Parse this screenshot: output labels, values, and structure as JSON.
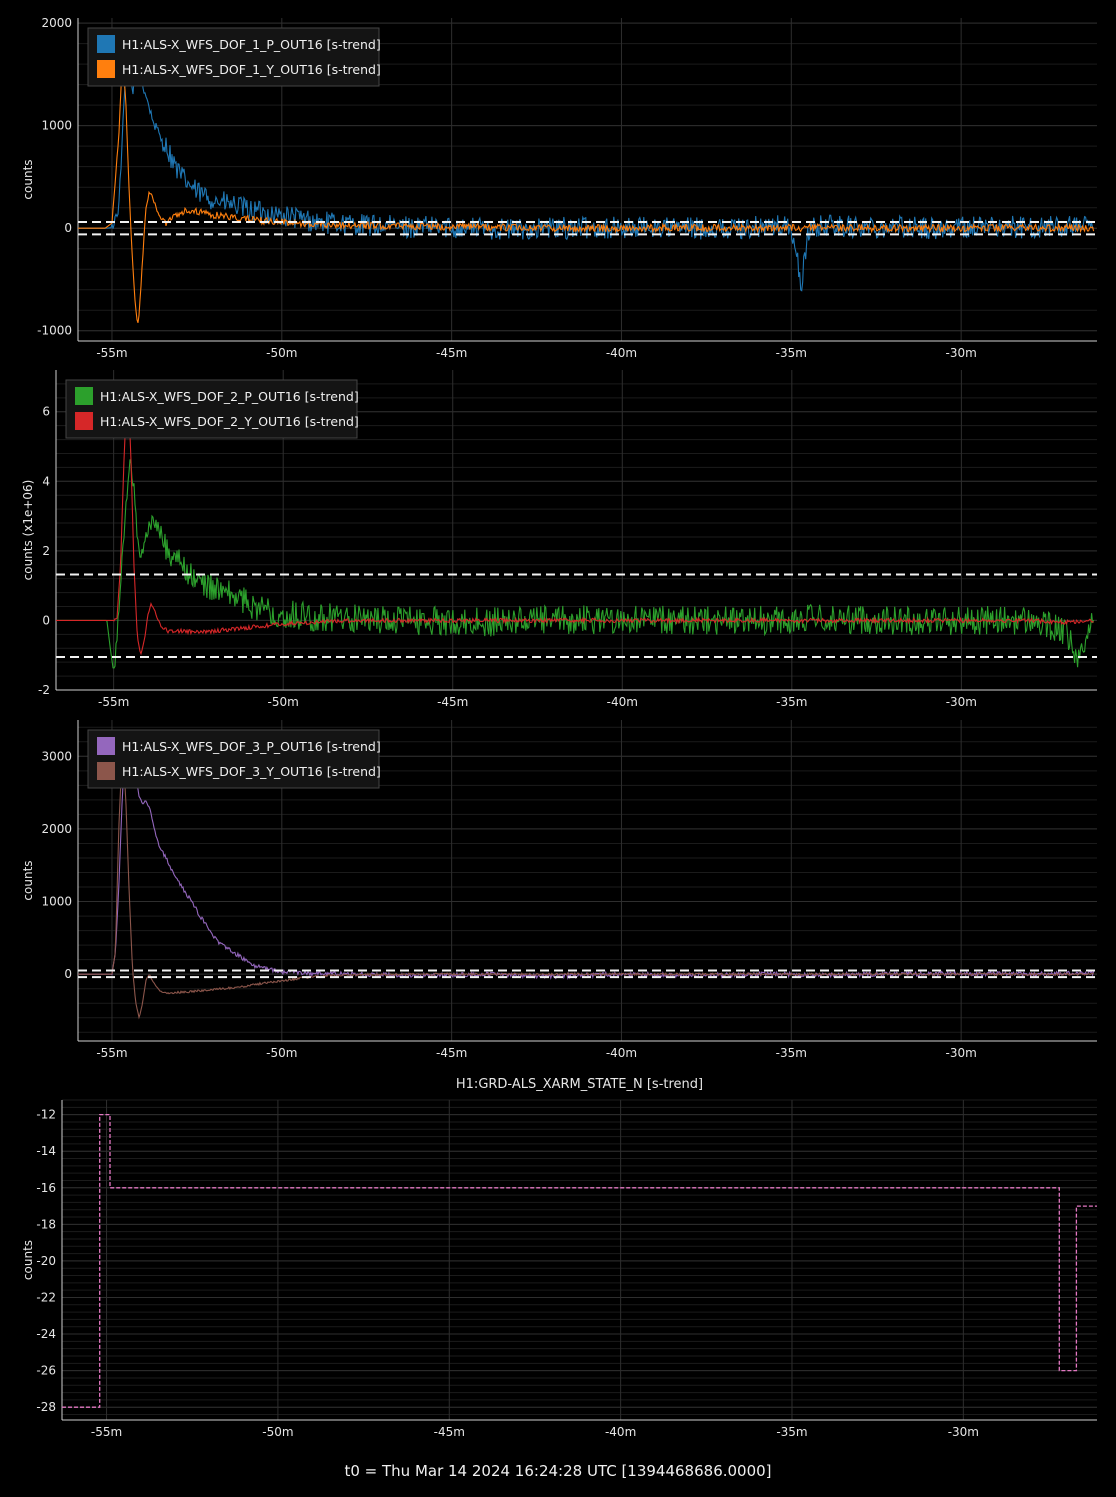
{
  "footer_text": "t0 = Thu Mar 14 2024 16:24:28 UTC [1394468686.0000]",
  "chart_data": [
    {
      "type": "line",
      "ylabel": "counts",
      "x_unit": "minutes relative to t0",
      "xlim": [
        -56,
        -26
      ],
      "ylim": [
        -1100,
        2050
      ],
      "x_ticks": [
        -55,
        -50,
        -45,
        -40,
        -35,
        -30
      ],
      "x_tick_labels": [
        "-55m",
        "-50m",
        "-45m",
        "-40m",
        "-35m",
        "-30m"
      ],
      "y_ticks": [
        -1000,
        0,
        1000,
        2000
      ],
      "y_tick_labels": [
        "-1000",
        "0",
        "1000",
        "2000"
      ],
      "thresholds": [
        60,
        -60
      ],
      "legend_position": "top-left",
      "series": [
        {
          "name": "H1:ALS-X_WFS_DOF_1_P_OUT16 [s-trend]",
          "color": "#1f77b4",
          "x": [
            -56,
            -55.2,
            -55.0,
            -54.8,
            -54.6,
            -54.5,
            -54.4,
            -54.3,
            -54.2,
            -54.1,
            -54.0,
            -53.8,
            -53.6,
            -53.4,
            -53.2,
            -53.0,
            -52.5,
            -52.0,
            -51.5,
            -51.0,
            -50.5,
            -50.0,
            -49.5,
            -49.0,
            -48.0,
            -47.0,
            -46.0,
            -45.0,
            -44.0,
            -43.0,
            -42.0,
            -41.0,
            -40.0,
            -39.0,
            -38.0,
            -37.0,
            -36.0,
            -35.5,
            -35.0,
            -34.7,
            -34.5,
            -34.0,
            -33.0,
            -32.0,
            -31.0,
            -30.0,
            -29.0,
            -28.0,
            -27.0,
            -26.1
          ],
          "y": [
            0,
            0,
            5,
            200,
            1500,
            1850,
            1300,
            1550,
            1750,
            1400,
            1300,
            1050,
            900,
            800,
            650,
            520,
            350,
            280,
            230,
            180,
            150,
            120,
            100,
            60,
            40,
            20,
            10,
            10,
            0,
            -10,
            0,
            5,
            0,
            10,
            0,
            -5,
            10,
            20,
            10,
            -560,
            -20,
            30,
            10,
            20,
            0,
            10,
            20,
            0,
            15,
            0
          ]
        },
        {
          "name": "H1:ALS-X_WFS_DOF_1_Y_OUT16 [s-trend]",
          "color": "#ff7f0e",
          "x": [
            -56,
            -55.2,
            -55.0,
            -54.8,
            -54.7,
            -54.6,
            -54.5,
            -54.4,
            -54.3,
            -54.25,
            -54.2,
            -54.1,
            -54.0,
            -53.9,
            -53.8,
            -53.6,
            -53.4,
            -53.2,
            -53.0,
            -52.8,
            -52.5,
            -52.0,
            -51.5,
            -51.0,
            -50.5,
            -50.0,
            -49.0,
            -48.0,
            -46.0,
            -44.0,
            -42.0,
            -40.0,
            -38.0,
            -36.0,
            -34.0,
            -32.0,
            -30.0,
            -28.0,
            -26.1
          ],
          "y": [
            0,
            0,
            50,
            900,
            1600,
            1300,
            400,
            -300,
            -800,
            -940,
            -850,
            -300,
            200,
            350,
            300,
            100,
            50,
            120,
            150,
            180,
            170,
            130,
            110,
            90,
            70,
            60,
            40,
            30,
            20,
            10,
            0,
            0,
            5,
            0,
            5,
            0,
            0,
            5,
            0
          ]
        }
      ]
    },
    {
      "type": "line",
      "ylabel": "counts (x1e+06)",
      "x_unit": "minutes relative to t0",
      "xlim": [
        -56.7,
        -26
      ],
      "ylim": [
        -2,
        7.2
      ],
      "x_ticks": [
        -55,
        -50,
        -45,
        -40,
        -35,
        -30
      ],
      "x_tick_labels": [
        "-55m",
        "-50m",
        "-45m",
        "-40m",
        "-35m",
        "-30m"
      ],
      "y_ticks": [
        -2,
        0,
        2,
        4,
        6
      ],
      "y_tick_labels": [
        "-2",
        "0",
        "2",
        "4",
        "6"
      ],
      "thresholds": [
        1.32,
        -1.05
      ],
      "legend_position": "top-left",
      "series": [
        {
          "name": "H1:ALS-X_WFS_DOF_2_P_OUT16 [s-trend]",
          "color": "#2ca02c",
          "x": [
            -56.7,
            -55.2,
            -55.1,
            -55.0,
            -54.9,
            -54.8,
            -54.7,
            -54.6,
            -54.5,
            -54.4,
            -54.3,
            -54.2,
            -54.1,
            -54.0,
            -53.8,
            -53.6,
            -53.4,
            -53.2,
            -53.0,
            -52.8,
            -52.5,
            -52.0,
            -51.5,
            -51.0,
            -50.5,
            -50.0,
            -49.0,
            -48.0,
            -46.0,
            -44.0,
            -42.0,
            -40.0,
            -38.0,
            -36.0,
            -34.0,
            -32.0,
            -30.0,
            -28.0,
            -27.0,
            -26.5,
            -26.1
          ],
          "y": [
            0,
            0,
            -0.8,
            -1.5,
            -0.5,
            1.0,
            2.5,
            3.8,
            4.6,
            3.8,
            2.3,
            1.8,
            2.2,
            2.6,
            2.9,
            2.5,
            2.0,
            1.8,
            1.6,
            1.4,
            1.1,
            0.9,
            0.7,
            0.5,
            0.3,
            0.2,
            0.1,
            0.05,
            0,
            -0.05,
            0,
            0.05,
            0,
            0,
            0.05,
            0,
            0,
            0,
            -0.3,
            -1.2,
            0.3
          ]
        },
        {
          "name": "H1:ALS-X_WFS_DOF_2_Y_OUT16 [s-trend]",
          "color": "#d62728",
          "x": [
            -56.7,
            -55.0,
            -54.9,
            -54.8,
            -54.7,
            -54.6,
            -54.5,
            -54.4,
            -54.3,
            -54.2,
            -54.1,
            -54.0,
            -53.9,
            -53.8,
            -53.6,
            -53.4,
            -53.0,
            -52.5,
            -52.0,
            -51.5,
            -51.0,
            -50.5,
            -50.0,
            -49.0,
            -48.0,
            -46.0,
            -44.0,
            -42.0,
            -40.0,
            -38.0,
            -36.0,
            -34.0,
            -32.0,
            -30.0,
            -28.0,
            -27.0,
            -26.1
          ],
          "y": [
            0,
            0,
            0.1,
            1.5,
            4.5,
            6.8,
            5.0,
            1.5,
            -0.5,
            -1.0,
            -0.6,
            0.1,
            0.5,
            0.3,
            -0.2,
            -0.3,
            -0.3,
            -0.35,
            -0.3,
            -0.25,
            -0.2,
            -0.15,
            -0.1,
            -0.05,
            0,
            0,
            0,
            0,
            0,
            0,
            0,
            0,
            0,
            0,
            0,
            -0.05,
            0
          ]
        }
      ]
    },
    {
      "type": "line",
      "ylabel": "counts",
      "x_unit": "minutes relative to t0",
      "xlim": [
        -56,
        -26
      ],
      "ylim": [
        -920,
        3500
      ],
      "x_ticks": [
        -55,
        -50,
        -45,
        -40,
        -35,
        -30
      ],
      "x_tick_labels": [
        "-55m",
        "-50m",
        "-45m",
        "-40m",
        "-35m",
        "-30m"
      ],
      "y_ticks": [
        0,
        1000,
        2000,
        3000
      ],
      "y_tick_labels": [
        "0",
        "1000",
        "2000",
        "3000"
      ],
      "thresholds": [
        50,
        -40
      ],
      "legend_position": "top-left",
      "series": [
        {
          "name": "H1:ALS-X_WFS_DOF_3_P_OUT16 [s-trend]",
          "color": "#9467bd",
          "x": [
            -56,
            -55.0,
            -54.9,
            -54.8,
            -54.7,
            -54.6,
            -54.5,
            -54.4,
            -54.3,
            -54.2,
            -54.1,
            -54.0,
            -53.9,
            -53.8,
            -53.7,
            -53.6,
            -53.4,
            -53.2,
            -53.0,
            -52.8,
            -52.6,
            -52.4,
            -52.2,
            -52.0,
            -51.8,
            -51.5,
            -51.2,
            -51.0,
            -50.8,
            -50.5,
            -50.2,
            -50.0,
            -49.0,
            -48.0,
            -46.0,
            -44.0,
            -42.0,
            -40.0,
            -38.0,
            -36.0,
            -34.0,
            -32.0,
            -30.0,
            -28.0,
            -26.1
          ],
          "y": [
            0,
            0,
            300,
            1200,
            2400,
            3200,
            3350,
            3100,
            2700,
            2450,
            2350,
            2380,
            2300,
            2100,
            1900,
            1750,
            1600,
            1400,
            1250,
            1100,
            950,
            800,
            650,
            520,
            420,
            320,
            230,
            170,
            120,
            80,
            50,
            30,
            10,
            0,
            -20,
            0,
            -30,
            0,
            -20,
            0,
            -10,
            0,
            10,
            0,
            20
          ]
        },
        {
          "name": "H1:ALS-X_WFS_DOF_3_Y_OUT16 [s-trend]",
          "color": "#8c564b",
          "x": [
            -56,
            -55.0,
            -54.9,
            -54.8,
            -54.7,
            -54.6,
            -54.5,
            -54.4,
            -54.3,
            -54.2,
            -54.1,
            -54.0,
            -53.9,
            -53.8,
            -53.6,
            -53.4,
            -53.0,
            -52.5,
            -52.0,
            -51.5,
            -51.0,
            -50.5,
            -50.0,
            -49.5,
            -49.0,
            -48.0,
            -46.0,
            -44.0,
            -42.0,
            -40.0,
            -38.0,
            -36.0,
            -34.0,
            -32.0,
            -30.0,
            -28.0,
            -26.1
          ],
          "y": [
            0,
            0,
            300,
            2000,
            3050,
            2500,
            1200,
            100,
            -400,
            -600,
            -400,
            -80,
            0,
            -100,
            -230,
            -260,
            -250,
            -230,
            -210,
            -190,
            -160,
            -120,
            -90,
            -60,
            -30,
            -10,
            0,
            0,
            0,
            0,
            0,
            0,
            0,
            0,
            0,
            0,
            0
          ]
        }
      ]
    },
    {
      "type": "line",
      "title": "H1:GRD-ALS_XARM_STATE_N [s-trend]",
      "ylabel": "counts",
      "x_unit": "minutes relative to t0",
      "xlim": [
        -56.3,
        -26.1
      ],
      "ylim": [
        -28.7,
        -11.2
      ],
      "x_ticks": [
        -55,
        -50,
        -45,
        -40,
        -35,
        -30
      ],
      "x_tick_labels": [
        "-55m",
        "-50m",
        "-45m",
        "-40m",
        "-35m",
        "-30m"
      ],
      "y_ticks": [
        -28,
        -26,
        -24,
        -22,
        -20,
        -18,
        -16,
        -14,
        -12
      ],
      "y_tick_labels": [
        "-28",
        "-26",
        "-24",
        "-22",
        "-20",
        "-18",
        "-16",
        "-14",
        "-12"
      ],
      "series": [
        {
          "color": "#e377c2",
          "step": true,
          "x": [
            -56.3,
            -55.2,
            -55.2,
            -54.9,
            -54.9,
            -27.2,
            -27.2,
            -26.7,
            -26.7,
            -26.1
          ],
          "y": [
            -28,
            -28,
            -12,
            -12,
            -16,
            -16,
            -26,
            -26,
            -17,
            -17
          ]
        }
      ]
    }
  ]
}
